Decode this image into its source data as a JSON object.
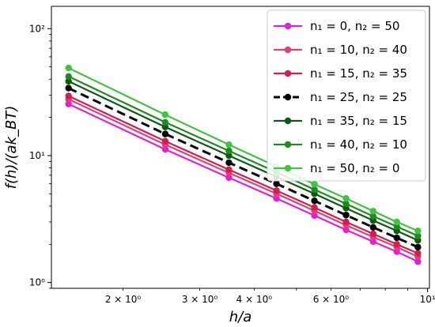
{
  "chart_data": {
    "type": "line",
    "xscale": "log",
    "yscale": "log",
    "xlim": [
      1.37,
      10.1
    ],
    "ylim": [
      0.9,
      150
    ],
    "xlabel": "h/a",
    "ylabel": "f(h)/(ak_BT)",
    "x_ticks": [
      {
        "value": 2,
        "label": "2 × 10⁰"
      },
      {
        "value": 3,
        "label": "3 × 10⁰"
      },
      {
        "value": 4,
        "label": "4 × 10⁰"
      },
      {
        "value": 6,
        "label": "6 × 10⁰"
      },
      {
        "value": 10,
        "label": "10¹"
      }
    ],
    "y_ticks": [
      {
        "value": 1,
        "label": "10⁰"
      },
      {
        "value": 10,
        "label": "10¹"
      },
      {
        "value": 100,
        "label": "10²"
      }
    ],
    "grid": false,
    "legend_position": "top-right",
    "x": [
      1.5,
      2.5,
      3.5,
      4.5,
      5.5,
      6.5,
      7.5,
      8.5,
      9.5
    ],
    "series": [
      {
        "name": "n₁ = 0,   n₂ = 50",
        "color": "#e020d8",
        "dashed": false,
        "values": [
          25.5,
          11.2,
          6.7,
          4.6,
          3.37,
          2.6,
          2.1,
          1.75,
          1.46
        ]
      },
      {
        "name": "n₁ = 10,   n₂ = 40",
        "color": "#e0407a",
        "dashed": false,
        "values": [
          27.8,
          12.2,
          7.3,
          5.0,
          3.67,
          2.83,
          2.28,
          1.9,
          1.6
        ]
      },
      {
        "name": "n₁ = 15,   n₂ = 35",
        "color": "#d41e50",
        "dashed": false,
        "values": [
          29.5,
          13.0,
          7.75,
          5.3,
          3.9,
          3.0,
          2.42,
          2.0,
          1.7
        ]
      },
      {
        "name": "n₁ = 25,   n₂ = 25",
        "color": "#000000",
        "dashed": true,
        "values": [
          34.0,
          14.8,
          8.8,
          6.0,
          4.4,
          3.4,
          2.72,
          2.25,
          1.9
        ]
      },
      {
        "name": "n₁ = 35,   n₂ = 15",
        "color": "#0f5a12",
        "dashed": false,
        "values": [
          38.5,
          16.8,
          10.0,
          6.8,
          5.0,
          3.85,
          3.08,
          2.55,
          2.15
        ]
      },
      {
        "name": "n₁ = 40,   n₂ = 10",
        "color": "#1f8a20",
        "dashed": false,
        "values": [
          42.0,
          18.3,
          10.9,
          7.4,
          5.4,
          4.17,
          3.33,
          2.76,
          2.33
        ]
      },
      {
        "name": "n₁ = 50,   n₂ = 0",
        "color": "#3ec43e",
        "dashed": false,
        "values": [
          49.0,
          21.0,
          12.2,
          8.2,
          5.95,
          4.6,
          3.65,
          3.0,
          2.55
        ]
      }
    ]
  }
}
